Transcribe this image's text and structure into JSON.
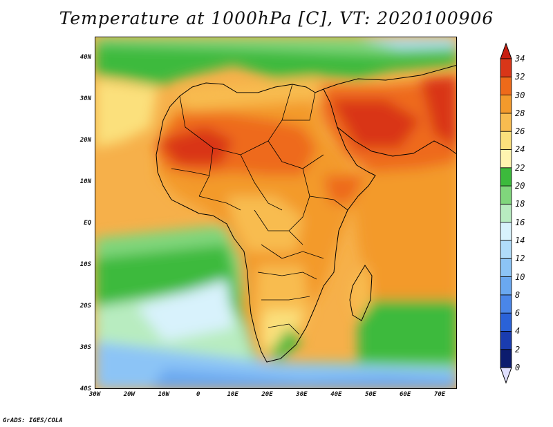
{
  "title": "Temperature at 1000hPa [C], VT: 2020100906",
  "credit": "GrADS: IGES/COLA",
  "lat_labels": [
    "40N",
    "30N",
    "20N",
    "10N",
    "EQ",
    "10S",
    "20S",
    "30S",
    "40S"
  ],
  "lat_values": [
    40,
    30,
    20,
    10,
    0,
    -10,
    -20,
    -30,
    -40
  ],
  "lon_labels": [
    "30W",
    "20W",
    "10W",
    "0",
    "10E",
    "20E",
    "30E",
    "40E",
    "50E",
    "60E",
    "70E"
  ],
  "lon_values": [
    -30,
    -20,
    -10,
    0,
    10,
    20,
    30,
    40,
    50,
    60,
    70
  ],
  "map_extent": {
    "lon_min": -30,
    "lon_max": 75,
    "lat_min": -40,
    "lat_max": 45
  },
  "colorbar": {
    "labels": [
      "0",
      "2",
      "4",
      "6",
      "8",
      "10",
      "12",
      "14",
      "16",
      "18",
      "20",
      "22",
      "24",
      "26",
      "28",
      "30",
      "32",
      "34"
    ],
    "colors": [
      "#0c1c6e",
      "#1a3cb0",
      "#2a62d8",
      "#4a86e8",
      "#6aa8f0",
      "#8cc4f6",
      "#b0dcfa",
      "#d8f2fc",
      "#b8ecc0",
      "#80d67c",
      "#3cba3c",
      "#fff4b0",
      "#fbe07c",
      "#f8bc50",
      "#f39a2c",
      "#ee6a1a",
      "#d93618"
    ],
    "min_color": "#e0e0ff",
    "max_color": "#c81e10"
  }
}
